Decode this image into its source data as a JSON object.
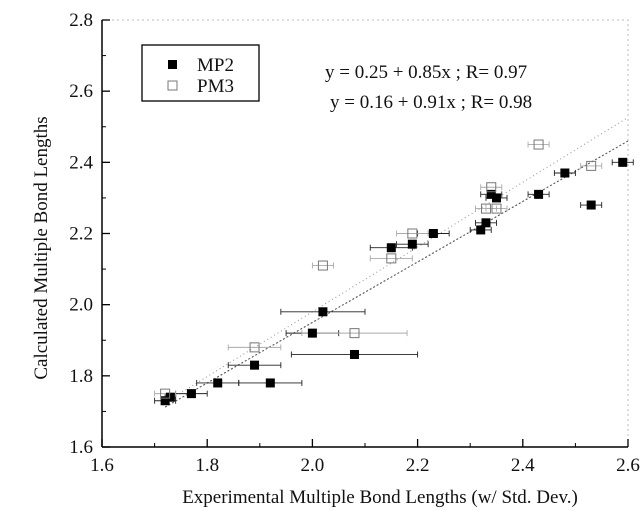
{
  "chart_data": {
    "type": "scatter",
    "xlabel": "Experimental Multiple Bond Lengths (w/ Std. Dev.)",
    "ylabel": "Calculated Multiple Bond Lengths",
    "xlim": [
      1.6,
      2.6
    ],
    "ylim": [
      1.6,
      2.8
    ],
    "x_ticks": [
      "1.6",
      "1.8",
      "2.0",
      "2.2",
      "2.4",
      "2.6"
    ],
    "y_ticks": [
      "1.6",
      "1.8",
      "2.0",
      "2.2",
      "2.4",
      "2.6",
      "2.8"
    ],
    "grid": false,
    "legend_position": "top-left",
    "annotations": [
      "y = 0.25 + 0.85x ;  R= 0.97",
      "y = 0.16 + 0.91x ;  R= 0.98"
    ],
    "fits": [
      {
        "series": "MP2",
        "intercept": 0.25,
        "slope": 0.85
      },
      {
        "series": "PM3",
        "intercept": 0.16,
        "slope": 0.91
      }
    ],
    "series": [
      {
        "name": "MP2",
        "marker": "filled-square",
        "color": "#000000",
        "points": [
          {
            "x": 1.72,
            "y": 1.73,
            "xerr": 0.02
          },
          {
            "x": 1.73,
            "y": 1.74,
            "xerr": 0.01
          },
          {
            "x": 1.77,
            "y": 1.75,
            "xerr": 0.03
          },
          {
            "x": 1.82,
            "y": 1.78,
            "xerr": 0.04
          },
          {
            "x": 1.89,
            "y": 1.83,
            "xerr": 0.05
          },
          {
            "x": 1.92,
            "y": 1.78,
            "xerr": 0.06
          },
          {
            "x": 2.0,
            "y": 1.92,
            "xerr": 0.05
          },
          {
            "x": 2.02,
            "y": 1.98,
            "xerr": 0.08
          },
          {
            "x": 2.08,
            "y": 1.86,
            "xerr": 0.12
          },
          {
            "x": 2.15,
            "y": 2.16,
            "xerr": 0.04
          },
          {
            "x": 2.19,
            "y": 2.17,
            "xerr": 0.03
          },
          {
            "x": 2.23,
            "y": 2.2,
            "xerr": 0.03
          },
          {
            "x": 2.32,
            "y": 2.21,
            "xerr": 0.02
          },
          {
            "x": 2.33,
            "y": 2.23,
            "xerr": 0.02
          },
          {
            "x": 2.34,
            "y": 2.31,
            "xerr": 0.02
          },
          {
            "x": 2.35,
            "y": 2.3,
            "xerr": 0.02
          },
          {
            "x": 2.43,
            "y": 2.31,
            "xerr": 0.02
          },
          {
            "x": 2.48,
            "y": 2.37,
            "xerr": 0.02
          },
          {
            "x": 2.53,
            "y": 2.28,
            "xerr": 0.02
          },
          {
            "x": 2.59,
            "y": 2.4,
            "xerr": 0.02
          }
        ]
      },
      {
        "name": "PM3",
        "marker": "open-square",
        "color": "#777777",
        "points": [
          {
            "x": 1.72,
            "y": 1.75,
            "xerr": 0.02
          },
          {
            "x": 1.89,
            "y": 1.88,
            "xerr": 0.05
          },
          {
            "x": 2.02,
            "y": 2.11,
            "xerr": 0.02
          },
          {
            "x": 2.08,
            "y": 1.92,
            "xerr": 0.1
          },
          {
            "x": 2.15,
            "y": 2.13,
            "xerr": 0.04
          },
          {
            "x": 2.19,
            "y": 2.2,
            "xerr": 0.03
          },
          {
            "x": 2.33,
            "y": 2.27,
            "xerr": 0.02
          },
          {
            "x": 2.34,
            "y": 2.33,
            "xerr": 0.02
          },
          {
            "x": 2.35,
            "y": 2.27,
            "xerr": 0.02
          },
          {
            "x": 2.43,
            "y": 2.45,
            "xerr": 0.02
          },
          {
            "x": 2.53,
            "y": 2.39,
            "xerr": 0.02
          }
        ]
      }
    ]
  }
}
